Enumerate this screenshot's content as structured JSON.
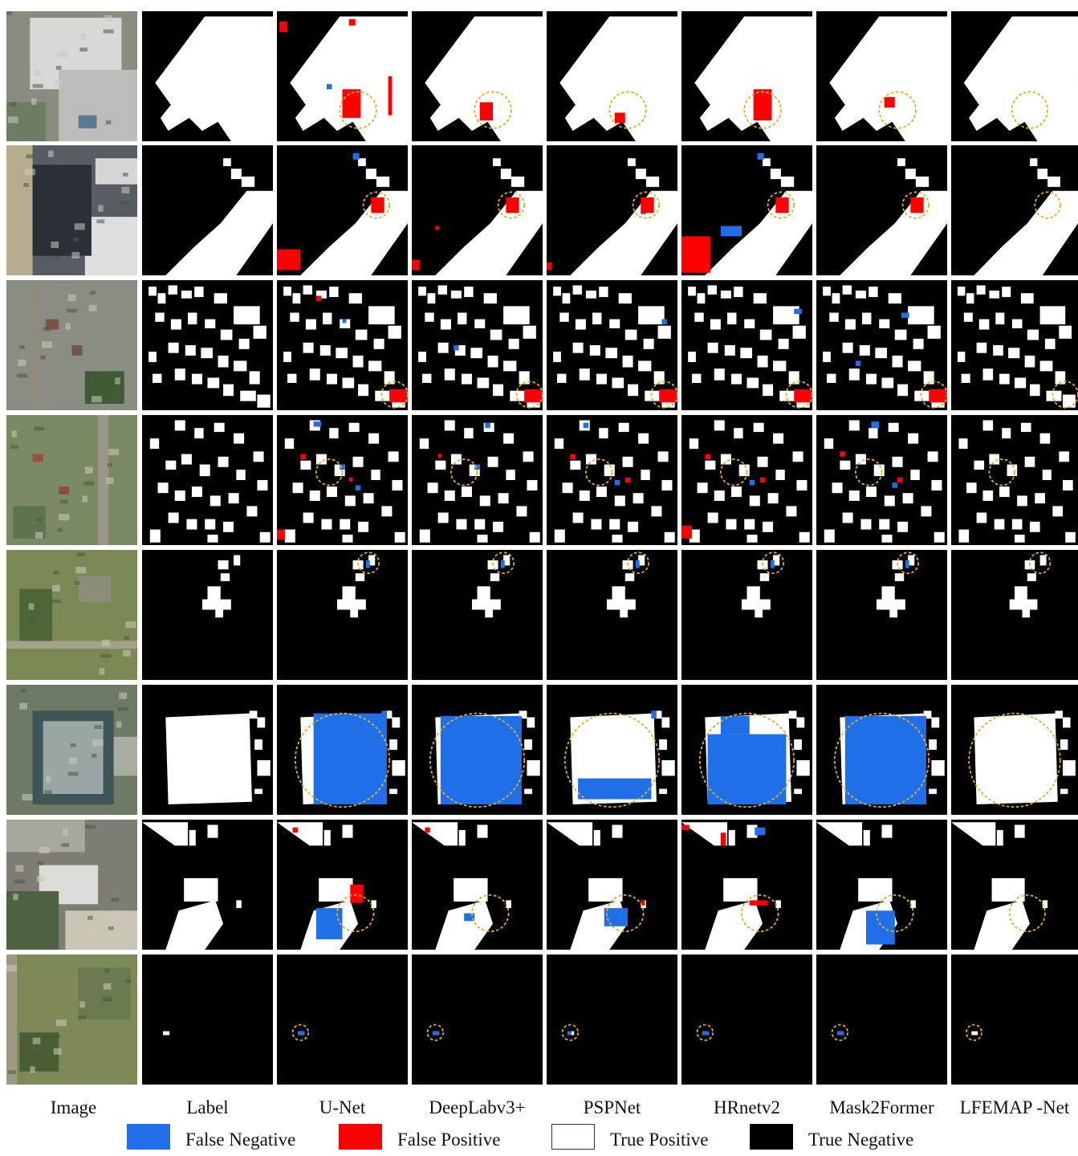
{
  "columns": [
    "Image",
    "Label",
    "U-Net",
    "DeepLabv3+",
    "PSPNet",
    "HRnetv2",
    "Mask2Former",
    "LFEMAP -Net"
  ],
  "legend": [
    {
      "label": "False Negative",
      "color": "#1e6fe8"
    },
    {
      "label": "False Positive",
      "color": "#ff0000"
    },
    {
      "label": "True Positive",
      "color": "#ffffff"
    },
    {
      "label": "True Negative",
      "color": "#000000"
    }
  ],
  "colors": {
    "fn": "#1e6fe8",
    "fp": "#ff0000",
    "tp": "#ffffff",
    "tn": "#000000",
    "highlight": "#e0b020"
  },
  "rows": [
    {
      "scene": "industrial-warehouse"
    },
    {
      "scene": "parking-and-roofs"
    },
    {
      "scene": "suburban-dense"
    },
    {
      "scene": "suburban-curved-road"
    },
    {
      "scene": "rural-houses"
    },
    {
      "scene": "solar-farm"
    },
    {
      "scene": "industrial-mixed"
    },
    {
      "scene": "field-single-building"
    }
  ]
}
